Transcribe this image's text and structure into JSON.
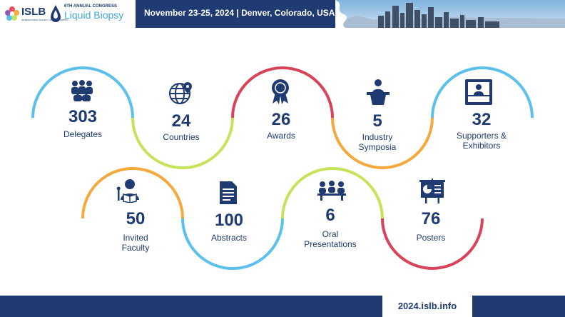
{
  "header": {
    "logo_text": "ISLB",
    "logo_subtext": "INTERNATIONAL SOCIETY OF LIQUID BIOPSY",
    "congress_top": "6TH ANNUAL CONGRESS",
    "congress_name": "Liquid Biopsy",
    "event_info": "November 23-25, 2024 | Denver, Colorado, USA"
  },
  "stats": [
    {
      "value": "303",
      "label": "Delegates",
      "icon": "people-group-icon"
    },
    {
      "value": "24",
      "label": "Countries",
      "icon": "globe-pin-icon"
    },
    {
      "value": "26",
      "label": "Awards",
      "icon": "award-medal-icon"
    },
    {
      "value": "5",
      "label": "Industry Symposia",
      "icon": "podium-speaker-icon"
    },
    {
      "value": "32",
      "label": "Supporters & Exhibitors",
      "icon": "exhibitor-booth-icon"
    },
    {
      "value": "50",
      "label": "Invited Faculty",
      "icon": "faculty-reading-icon"
    },
    {
      "value": "100",
      "label": "Abstracts",
      "icon": "document-icon"
    },
    {
      "value": "6",
      "label": "Oral Presentations",
      "icon": "meeting-table-icon"
    },
    {
      "value": "76",
      "label": "Posters",
      "icon": "poster-board-icon"
    }
  ],
  "footer": {
    "url": "2024.islb.info"
  },
  "colors": {
    "navy": "#1f3b72",
    "blue": "#5bc0eb",
    "green": "#c5e35a",
    "red": "#d9435a",
    "orange": "#f4a93d"
  }
}
